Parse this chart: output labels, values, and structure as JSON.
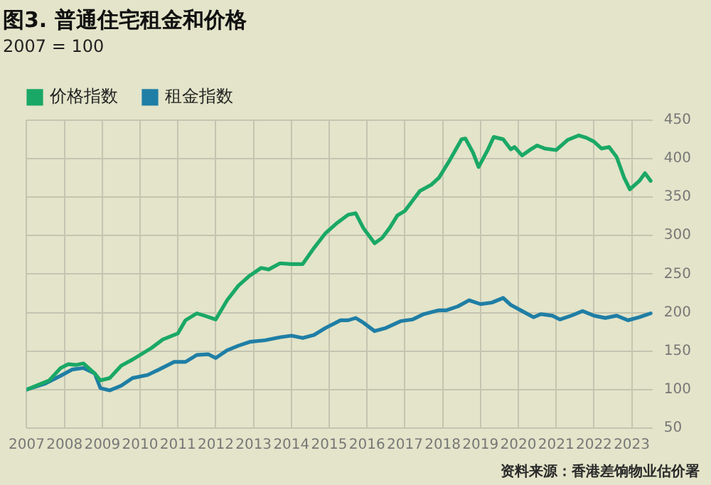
{
  "chart_data": {
    "type": "line",
    "title": "图3. 普通住宅租金和价格",
    "subtitle": "2007 = 100",
    "x": [
      2007,
      2007.6,
      2007.9,
      2008.1,
      2008.3,
      2008.5,
      2008.8,
      2008.95,
      2009.2,
      2009.5,
      2009.8,
      2010.3,
      2010.6,
      2011,
      2011.2,
      2011.5,
      2011.7,
      2012,
      2012.3,
      2012.6,
      2012.9,
      2013.2,
      2013.4,
      2013.7,
      2014,
      2014.3,
      2014.6,
      2014.9,
      2015.2,
      2015.5,
      2015.7,
      2015.9,
      2016.2,
      2016.4,
      2016.6,
      2016.8,
      2017,
      2017.2,
      2017.4,
      2017.7,
      2017.9,
      2018.2,
      2018.5,
      2018.6,
      2018.8,
      2018.95,
      2019.2,
      2019.35,
      2019.6,
      2019.8,
      2019.9,
      2020.1,
      2020.3,
      2020.5,
      2020.7,
      2021,
      2021.3,
      2021.6,
      2021.8,
      2022,
      2022.2,
      2022.4,
      2022.6,
      2022.8,
      2022.95,
      2023.2,
      2023.35,
      2023.5
    ],
    "series": [
      {
        "name": "价格指数",
        "color": "#1aa866",
        "values": [
          100,
          112,
          128,
          133,
          132,
          134,
          121,
          112,
          115,
          131,
          139,
          154,
          165,
          173,
          190,
          199,
          196,
          191,
          216,
          235,
          248,
          258,
          256,
          264,
          263,
          263,
          284,
          303,
          316,
          327,
          329,
          310,
          290,
          297,
          310,
          326,
          332,
          345,
          358,
          366,
          375,
          399,
          425,
          426,
          408,
          389,
          412,
          428,
          425,
          412,
          415,
          404,
          411,
          417,
          413,
          411,
          424,
          430,
          427,
          422,
          413,
          415,
          402,
          375,
          360,
          371,
          381,
          371
        ]
      },
      {
        "name": "租金指数",
        "color": "#1f7ea5",
        "x": [
          2007,
          2007.5,
          2007.9,
          2008.2,
          2008.5,
          2008.8,
          2008.95,
          2009.2,
          2009.5,
          2009.8,
          2010.2,
          2010.5,
          2010.9,
          2011.2,
          2011.5,
          2011.8,
          2012,
          2012.3,
          2012.6,
          2012.9,
          2013.3,
          2013.7,
          2014,
          2014.3,
          2014.6,
          2014.9,
          2015.3,
          2015.5,
          2015.7,
          2015.9,
          2016.2,
          2016.5,
          2016.9,
          2017.2,
          2017.5,
          2017.9,
          2018.1,
          2018.4,
          2018.7,
          2019,
          2019.3,
          2019.6,
          2019.8,
          2020.1,
          2020.4,
          2020.6,
          2020.9,
          2021.1,
          2021.4,
          2021.7,
          2022,
          2022.3,
          2022.6,
          2022.9,
          2023.2,
          2023.5
        ],
        "values": [
          100,
          108,
          118,
          126,
          128,
          121,
          102,
          99,
          105,
          115,
          119,
          126,
          136,
          136,
          145,
          146,
          141,
          151,
          157,
          162,
          164,
          168,
          170,
          167,
          171,
          180,
          190,
          190,
          193,
          187,
          176,
          180,
          189,
          191,
          198,
          203,
          203,
          208,
          216,
          211,
          213,
          219,
          210,
          202,
          194,
          198,
          196,
          191,
          196,
          202,
          196,
          193,
          196,
          190,
          194,
          199
        ]
      }
    ],
    "xlim": [
      2007,
      2023.55
    ],
    "xticks": [
      2007,
      2008,
      2009,
      2010,
      2011,
      2012,
      2013,
      2014,
      2015,
      2016,
      2017,
      2018,
      2019,
      2020,
      2021,
      2022,
      2023
    ],
    "ylim": [
      50,
      450
    ],
    "yticks": [
      50,
      100,
      150,
      200,
      250,
      300,
      350,
      400,
      450
    ],
    "grid": true,
    "legend": "top left",
    "marker": "none",
    "annotations": [
      "资料来源：香港差饷物业估价署"
    ]
  }
}
